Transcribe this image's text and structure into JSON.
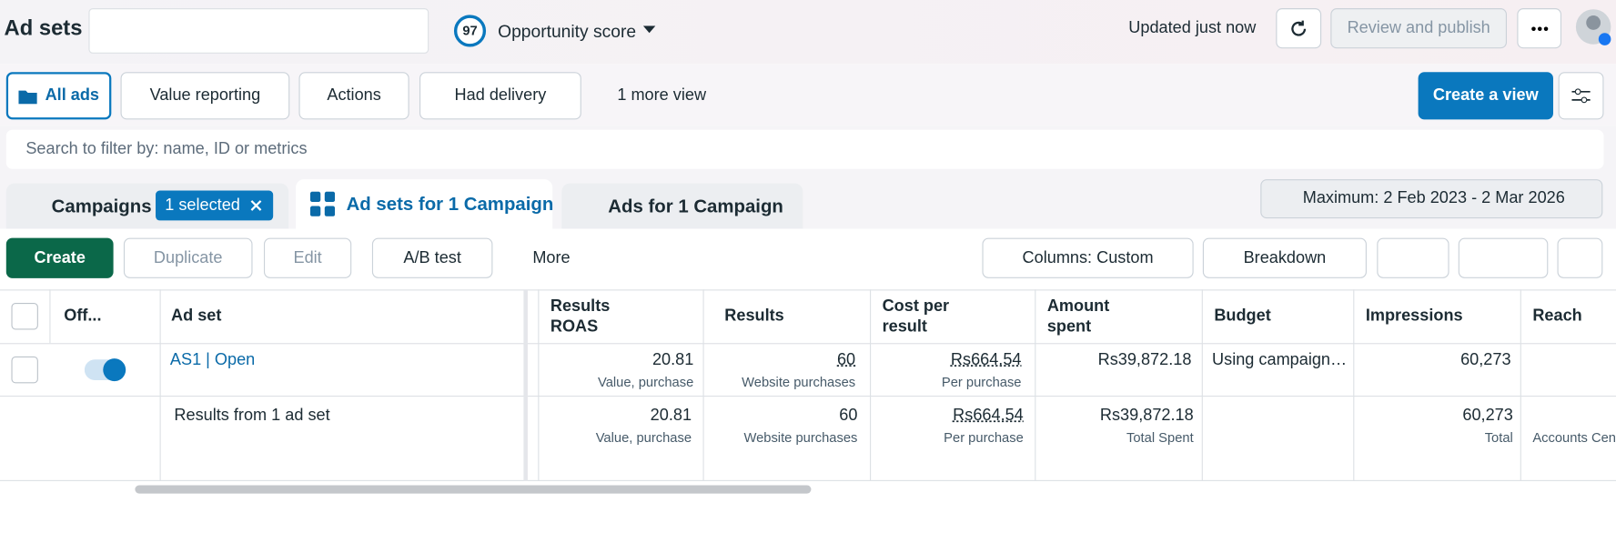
{
  "header": {
    "title": "Ad sets",
    "opportunity_score": 97,
    "opportunity_label": "Opportunity score",
    "updated": "Updated just now",
    "review": "Review and publish"
  },
  "views": {
    "items": [
      "All ads",
      "Value reporting",
      "Actions",
      "Had delivery",
      "1 more view"
    ],
    "create": "Create a view"
  },
  "search": {
    "placeholder": "Search to filter by: name, ID or metrics"
  },
  "tabs": {
    "campaigns": "Campaigns",
    "selected": "1 selected",
    "ad_sets": "Ad sets for 1 Campaign",
    "ads": "Ads for 1 Campaign",
    "date_range": "Maximum: 2 Feb 2023 - 2 Mar 2026"
  },
  "toolbar": {
    "create": "Create",
    "duplicate": "Duplicate",
    "edit": "Edit",
    "ab_test": "A/B test",
    "more": "More",
    "columns": "Columns: Custom",
    "breakdown": "Breakdown"
  },
  "table": {
    "columns": [
      "Off...",
      "Ad set",
      "Results ROAS",
      "Results",
      "Cost per result",
      "Amount spent",
      "Budget",
      "Impressions",
      "Reach"
    ],
    "row": {
      "name": "AS1 | Open",
      "roas": "20.81",
      "roas_sub": "Value, purchase",
      "results": "60",
      "results_sub": "Website purchases",
      "cost": "Rs664.54",
      "cost_sub": "Per purchase",
      "amount": "Rs39,872.18",
      "budget": "Using campaign…",
      "impressions": "60,273"
    },
    "summary": {
      "label": "Results from 1 ad set",
      "roas": "20.81",
      "roas_sub": "Value, purchase",
      "results": "60",
      "results_sub": "Website purchases",
      "cost": "Rs664.54",
      "cost_sub": "Per purchase",
      "amount": "Rs39,872.18",
      "amount_sub": "Total Spent",
      "impressions": "60,273",
      "impressions_sub": "Total",
      "reach_sub": "Accounts Cen"
    }
  }
}
